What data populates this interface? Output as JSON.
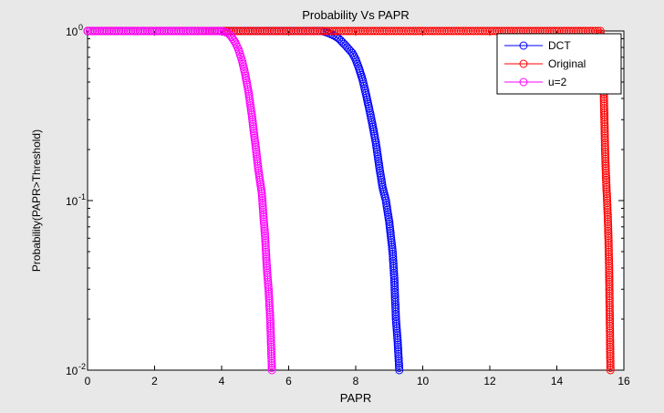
{
  "chart_data": {
    "type": "line",
    "title": "Probability Vs PAPR",
    "xlabel": "PAPR",
    "ylabel": "Probability(PAPR>Threshold)",
    "xlim": [
      0,
      16
    ],
    "ylim": [
      0.01,
      1
    ],
    "yscale": "log",
    "xticks": [
      "0",
      "2",
      "4",
      "6",
      "8",
      "10",
      "12",
      "14",
      "16"
    ],
    "yticks": [
      {
        "value": 1,
        "label": "10",
        "exp": "0"
      },
      {
        "value": 0.1,
        "label": "10",
        "exp": "-1"
      },
      {
        "value": 0.01,
        "label": "10",
        "exp": "-2"
      }
    ],
    "grid": false,
    "legend": "top-right",
    "marker": "circle",
    "series": [
      {
        "name": "DCT",
        "color": "#0000ff",
        "x": [
          0,
          1,
          2,
          3,
          4,
          5,
          6,
          6.5,
          7.0,
          7.2,
          7.4,
          7.5,
          7.6,
          7.7,
          7.8,
          7.9,
          8.0,
          8.1,
          8.2,
          8.3,
          8.4,
          8.5,
          8.6,
          8.7,
          8.8,
          8.9,
          9.0,
          9.1,
          9.15,
          9.2,
          9.25,
          9.3
        ],
        "y": [
          1,
          1,
          1,
          1,
          1,
          1,
          1,
          1,
          1,
          0.97,
          0.93,
          0.9,
          0.86,
          0.82,
          0.78,
          0.74,
          0.68,
          0.6,
          0.52,
          0.43,
          0.35,
          0.28,
          0.22,
          0.16,
          0.12,
          0.1,
          0.075,
          0.05,
          0.035,
          0.02,
          0.015,
          0.01
        ]
      },
      {
        "name": "Original",
        "color": "#ff0000",
        "x": [
          0,
          2,
          4,
          6,
          8,
          10,
          12,
          14,
          15.0,
          15.3,
          15.35,
          15.4,
          15.42,
          15.44,
          15.46,
          15.48,
          15.5,
          15.52,
          15.54,
          15.56,
          15.58,
          15.6
        ],
        "y": [
          1,
          1,
          1,
          1,
          1,
          1,
          1,
          1,
          1,
          1,
          0.7,
          0.45,
          0.3,
          0.2,
          0.15,
          0.12,
          0.1,
          0.08,
          0.06,
          0.04,
          0.02,
          0.01
        ]
      },
      {
        "name": "u=2",
        "color": "#ff00ff",
        "x": [
          0,
          1,
          2,
          3,
          3.8,
          4.0,
          4.2,
          4.3,
          4.4,
          4.5,
          4.6,
          4.7,
          4.8,
          4.9,
          5.0,
          5.1,
          5.2,
          5.25,
          5.3,
          5.35,
          5.4,
          5.45,
          5.5
        ],
        "y": [
          1,
          1,
          1,
          1,
          1,
          1,
          0.97,
          0.92,
          0.86,
          0.78,
          0.68,
          0.56,
          0.44,
          0.32,
          0.22,
          0.15,
          0.11,
          0.08,
          0.06,
          0.04,
          0.03,
          0.02,
          0.01
        ]
      }
    ]
  }
}
